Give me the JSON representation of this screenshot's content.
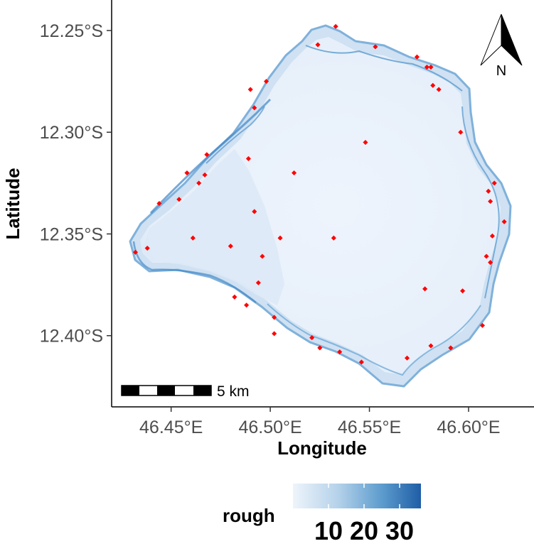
{
  "map": {
    "x_axis_title": "Longitude",
    "y_axis_title": "Latitude",
    "x_ticks": [
      {
        "value": 46.45,
        "label": "46.45°E"
      },
      {
        "value": 46.5,
        "label": "46.50°E"
      },
      {
        "value": 46.55,
        "label": "46.55°E"
      },
      {
        "value": 46.6,
        "label": "46.60°E"
      }
    ],
    "y_ticks": [
      {
        "value": -12.25,
        "label": "12.25°S"
      },
      {
        "value": -12.3,
        "label": "12.30°S"
      },
      {
        "value": -12.35,
        "label": "12.35°S"
      },
      {
        "value": -12.4,
        "label": "12.40°S"
      }
    ],
    "x_range": [
      46.42,
      46.633
    ],
    "y_range": [
      -12.435,
      -12.235
    ],
    "scale_bar_label": "5 km",
    "north_arrow_label": "N",
    "legend": {
      "title": "rough",
      "labels": [
        "10",
        "20",
        "30"
      ],
      "range": [
        0,
        36
      ],
      "colors": [
        "#eef4fb",
        "#b5d2ea",
        "#5b9bcd",
        "#1f5da6"
      ]
    },
    "point_color": "#ff0000",
    "points": [
      [
        46.533,
        -12.248
      ],
      [
        46.524,
        -12.257
      ],
      [
        46.553,
        -12.258
      ],
      [
        46.574,
        -12.263
      ],
      [
        46.579,
        -12.268
      ],
      [
        46.581,
        -12.268
      ],
      [
        46.582,
        -12.277
      ],
      [
        46.585,
        -12.279
      ],
      [
        46.498,
        -12.275
      ],
      [
        46.49,
        -12.279
      ],
      [
        46.492,
        -12.288
      ],
      [
        46.596,
        -12.3
      ],
      [
        46.548,
        -12.305
      ],
      [
        46.468,
        -12.311
      ],
      [
        46.489,
        -12.313
      ],
      [
        46.458,
        -12.32
      ],
      [
        46.467,
        -12.321
      ],
      [
        46.512,
        -12.32
      ],
      [
        46.613,
        -12.325
      ],
      [
        46.61,
        -12.329
      ],
      [
        46.464,
        -12.325
      ],
      [
        46.454,
        -12.333
      ],
      [
        46.611,
        -12.334
      ],
      [
        46.444,
        -12.335
      ],
      [
        46.492,
        -12.339
      ],
      [
        46.618,
        -12.344
      ],
      [
        46.461,
        -12.352
      ],
      [
        46.505,
        -12.352
      ],
      [
        46.532,
        -12.352
      ],
      [
        46.612,
        -12.351
      ],
      [
        46.48,
        -12.356
      ],
      [
        46.438,
        -12.357
      ],
      [
        46.432,
        -12.359
      ],
      [
        46.496,
        -12.361
      ],
      [
        46.609,
        -12.361
      ],
      [
        46.611,
        -12.364
      ],
      [
        46.494,
        -12.374
      ],
      [
        46.578,
        -12.377
      ],
      [
        46.597,
        -12.378
      ],
      [
        46.482,
        -12.381
      ],
      [
        46.488,
        -12.385
      ],
      [
        46.502,
        -12.391
      ],
      [
        46.607,
        -12.395
      ],
      [
        46.502,
        -12.399
      ],
      [
        46.521,
        -12.401
      ],
      [
        46.525,
        -12.406
      ],
      [
        46.535,
        -12.408
      ],
      [
        46.546,
        -12.413
      ],
      [
        46.569,
        -12.411
      ],
      [
        46.581,
        -12.405
      ],
      [
        46.591,
        -12.406
      ]
    ]
  }
}
